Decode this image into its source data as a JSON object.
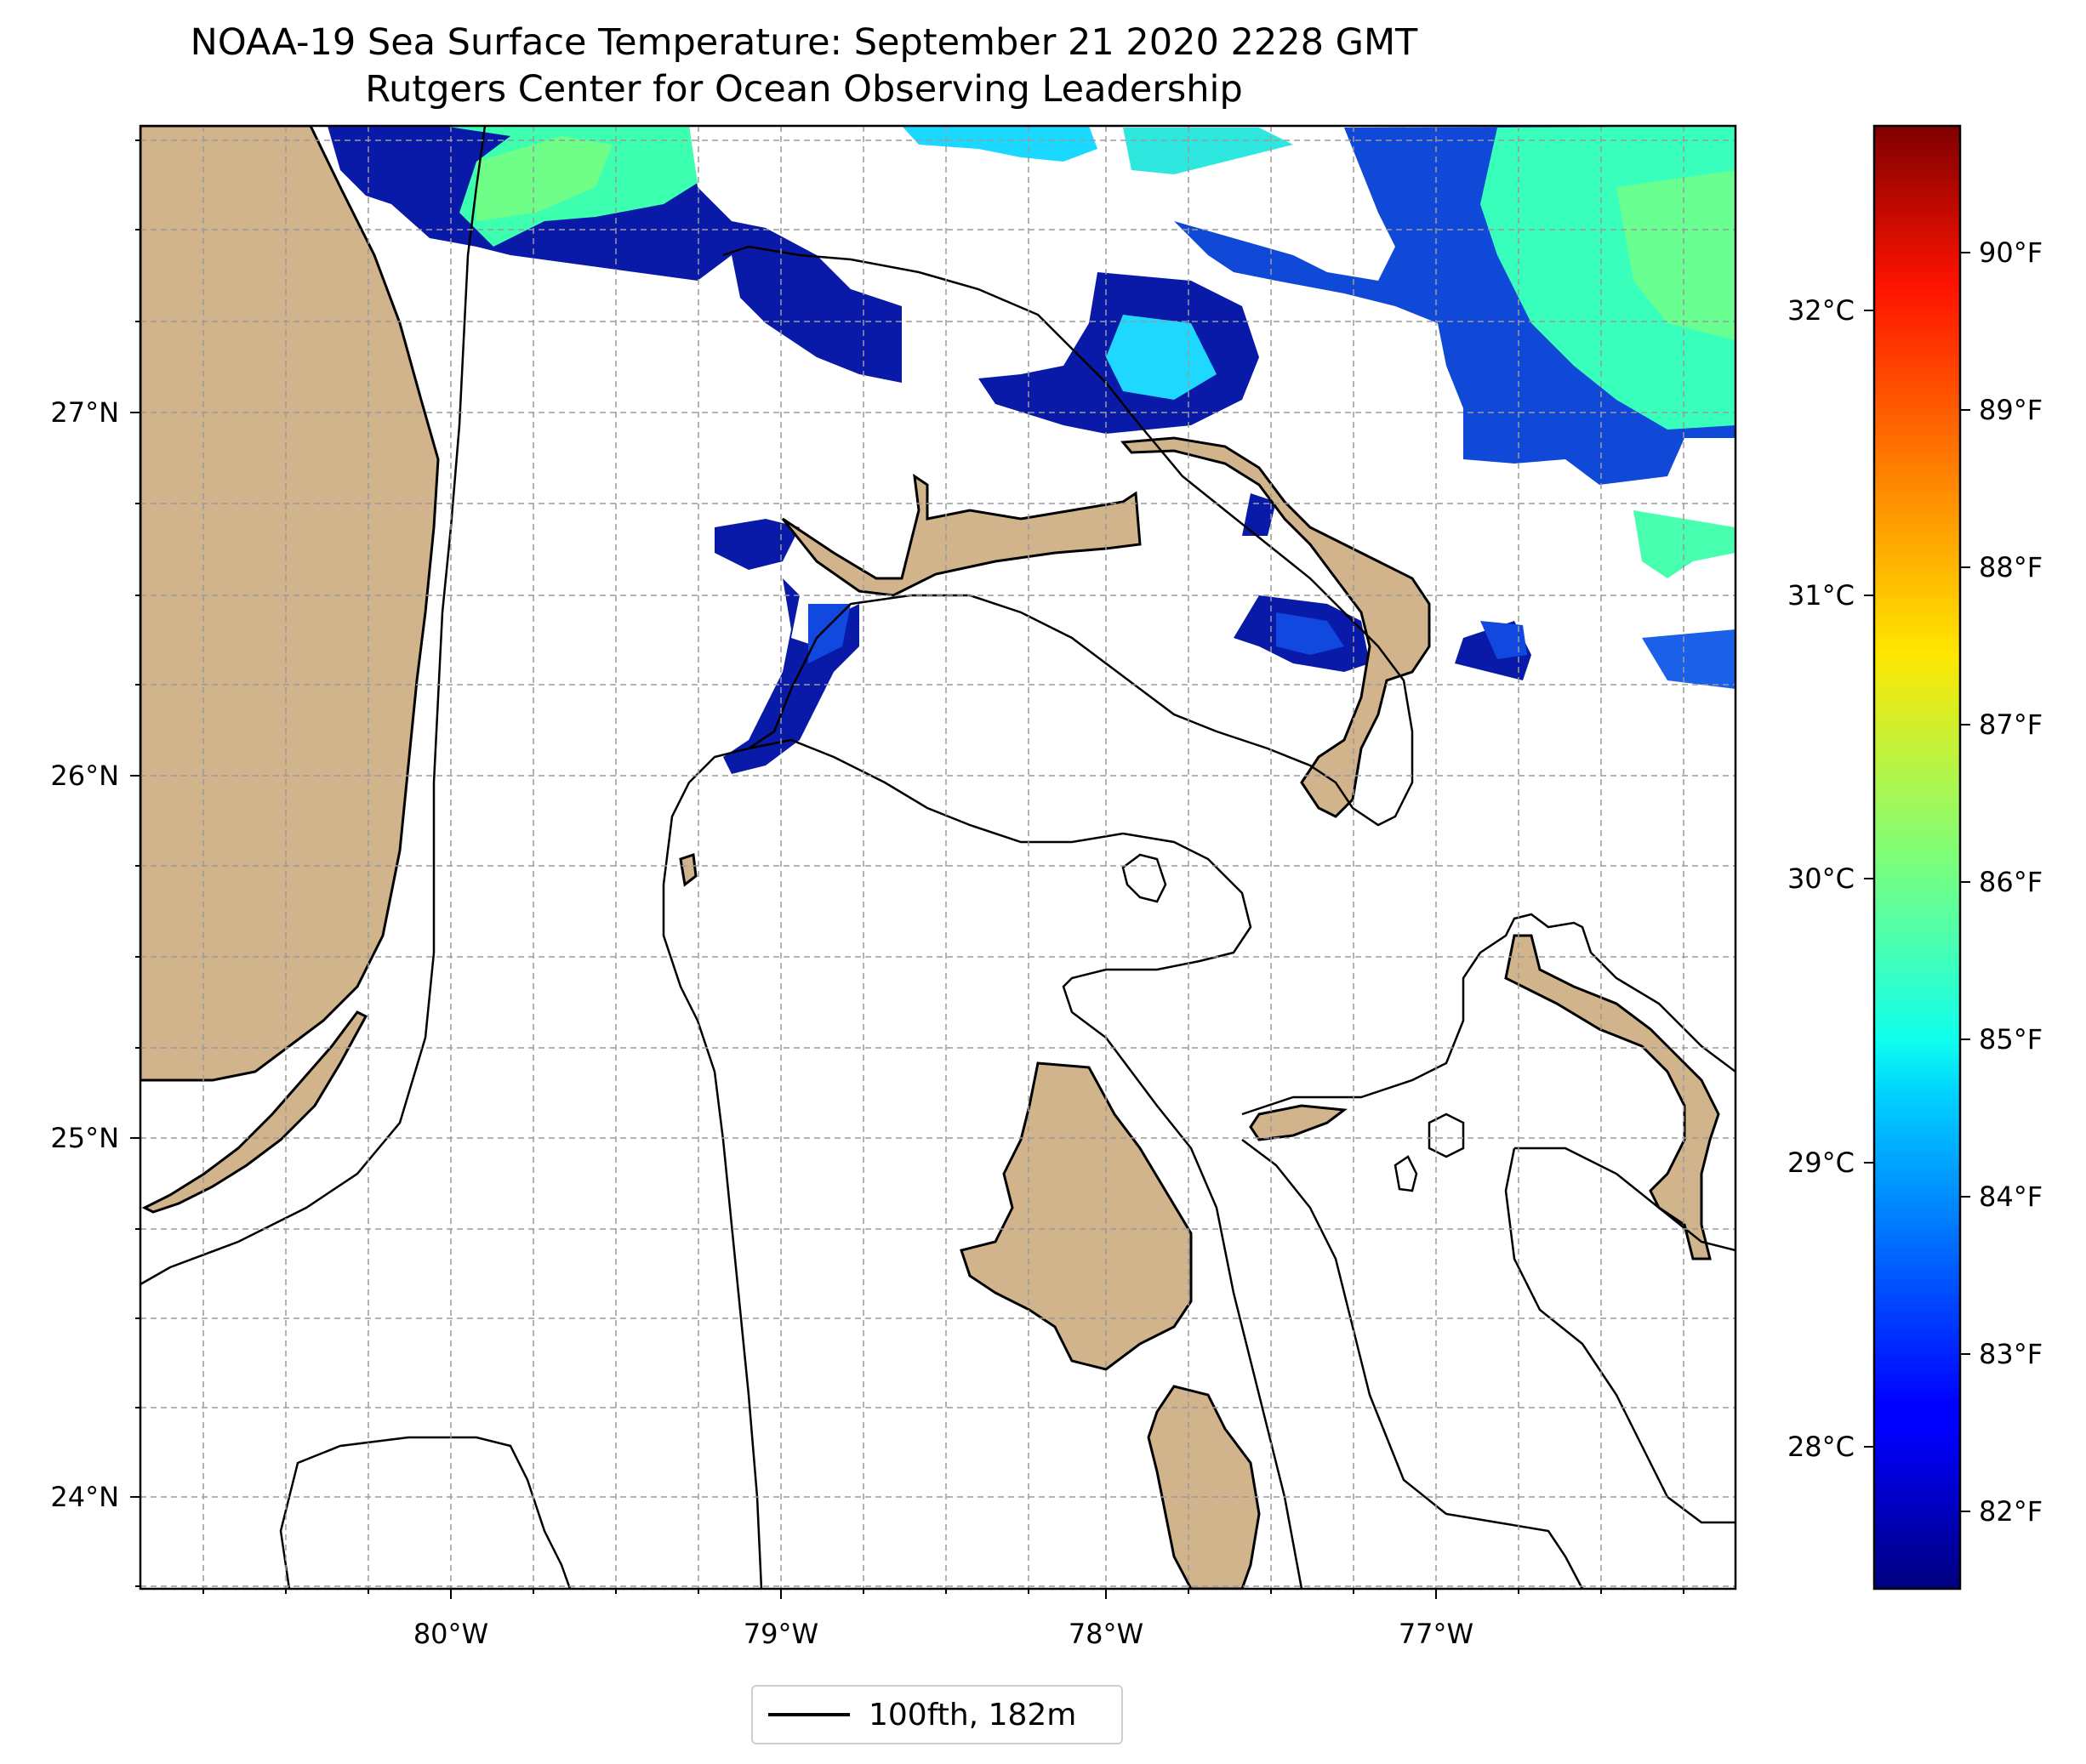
{
  "title": {
    "line1": "NOAA-19 Sea Surface Temperature: September 21 2020 2228 GMT",
    "line2": "Rutgers Center for Ocean Observing Leadership"
  },
  "map": {
    "lon_range": [
      -80.95,
      -76.1
    ],
    "lat_range": [
      23.75,
      27.8
    ],
    "lon_ticks": [
      {
        "value": -80,
        "label": "80°W"
      },
      {
        "value": -79,
        "label": "79°W"
      },
      {
        "value": -78,
        "label": "78°W"
      },
      {
        "value": -77,
        "label": "77°W"
      }
    ],
    "lat_ticks": [
      {
        "value": 27,
        "label": "27°N"
      },
      {
        "value": 26,
        "label": "26°N"
      },
      {
        "value": 25,
        "label": "25°N"
      },
      {
        "value": 24,
        "label": "24°N"
      }
    ],
    "gridlines": true,
    "land_color": "#d2b48c",
    "legend": {
      "label": "100fth, 182m",
      "placement": "bottom-center"
    }
  },
  "colorbar": {
    "colormap": "jet",
    "celsius_ticks": [
      "32°C",
      "31°C",
      "30°C",
      "29°C",
      "28°C"
    ],
    "fahrenheit_ticks": [
      "90°F",
      "89°F",
      "88°F",
      "87°F",
      "86°F",
      "85°F",
      "84°F",
      "83°F",
      "82°F"
    ]
  },
  "chart_data": {
    "type": "heatmap",
    "variable": "Sea Surface Temperature",
    "units": [
      "°C",
      "°F"
    ],
    "vmin_f": 81.5,
    "vmax_f": 90.8,
    "observed_range_f": [
      81.6,
      86.2
    ]
  }
}
